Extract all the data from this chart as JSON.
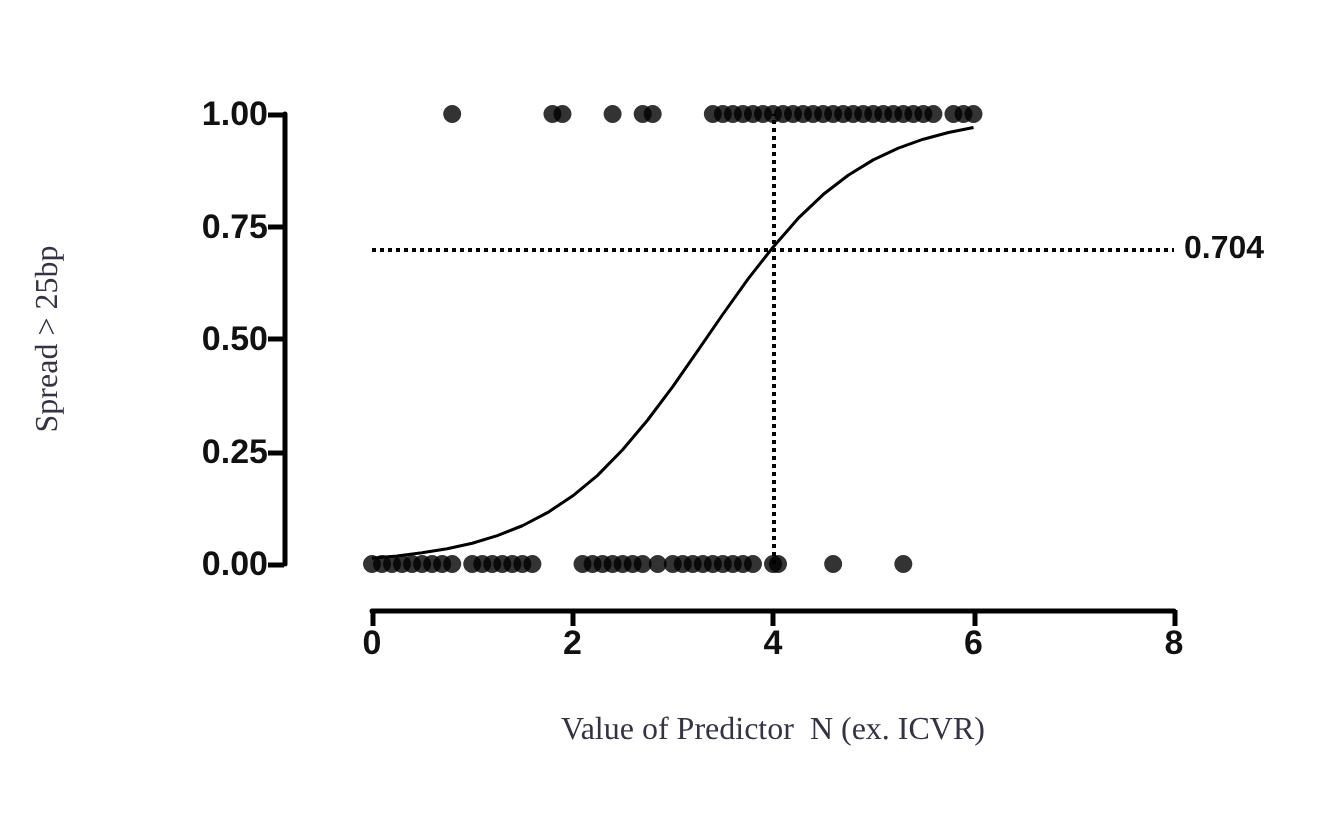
{
  "chart_data": {
    "type": "scatter",
    "xlabel": "Value of Predictor  N (ex. ICVR)",
    "ylabel": "Spread > 25bp",
    "xlim": [
      0,
      8
    ],
    "xticks": [
      0,
      2,
      4,
      6,
      8
    ],
    "ylim": [
      0,
      1
    ],
    "yticks": [
      {
        "value": 0,
        "label": "0.00"
      },
      {
        "value": 0.25,
        "label": "0.25"
      },
      {
        "value": 0.5,
        "label": "0.50"
      },
      {
        "value": 0.75,
        "label": "0.75"
      },
      {
        "value": 1,
        "label": "1.00"
      }
    ],
    "grid": false,
    "series": [
      {
        "color": "#000000",
        "marker": "circle",
        "x": [
          0,
          0.1,
          0.2,
          0.3,
          0.4,
          0.5,
          0.6,
          0.7,
          0.8,
          1.0,
          1.1,
          1.2,
          1.3,
          1.4,
          1.5,
          1.6,
          2.1,
          2.2,
          2.3,
          2.4,
          2.5,
          2.6,
          2.7,
          2.85,
          3.0,
          3.1,
          3.2,
          3.3,
          3.4,
          3.5,
          3.6,
          3.7,
          3.8,
          4.0,
          4.05,
          4.6,
          5.3,
          0.8,
          1.8,
          1.9,
          2.4,
          2.7,
          2.8,
          3.4,
          3.5,
          3.6,
          3.7,
          3.8,
          3.9,
          4.0,
          4.1,
          4.2,
          4.3,
          4.4,
          4.5,
          4.6,
          4.7,
          4.8,
          4.9,
          5.0,
          5.1,
          5.2,
          5.3,
          5.4,
          5.5,
          5.6,
          5.8,
          5.9,
          6.0
        ],
        "values": [
          0,
          0,
          0,
          0,
          0,
          0,
          0,
          0,
          0,
          0,
          0,
          0,
          0,
          0,
          0,
          0,
          0,
          0,
          0,
          0,
          0,
          0,
          0,
          0,
          0,
          0,
          0,
          0,
          0,
          0,
          0,
          0,
          0,
          0,
          0,
          0,
          0,
          1,
          1,
          1,
          1,
          1,
          1,
          1,
          1,
          1,
          1,
          1,
          1,
          1,
          1,
          1,
          1,
          1,
          1,
          1,
          1,
          1,
          1,
          1,
          1,
          1,
          1,
          1,
          1,
          1,
          1,
          1,
          1
        ]
      },
      {
        "type": "line",
        "color": "#000000",
        "marker": "none",
        "line_style": "solid",
        "x": [
          0,
          0.25,
          0.5,
          0.75,
          1,
          1.25,
          1.5,
          1.75,
          2,
          2.25,
          2.5,
          2.75,
          3,
          3.25,
          3.5,
          3.75,
          4,
          4.25,
          4.5,
          4.75,
          5,
          5.25,
          5.5,
          5.75,
          6
        ],
        "values": [
          0.013,
          0.018,
          0.025,
          0.034,
          0.046,
          0.063,
          0.085,
          0.114,
          0.151,
          0.197,
          0.254,
          0.32,
          0.394,
          0.474,
          0.555,
          0.633,
          0.704,
          0.768,
          0.821,
          0.864,
          0.898,
          0.924,
          0.944,
          0.959,
          0.97
        ]
      }
    ],
    "ref_lines": [
      {
        "axis": "y",
        "value": 0.704,
        "label": "0.704",
        "line_style": "dotted",
        "color": "#000000"
      },
      {
        "axis": "x",
        "value": 4,
        "label": null,
        "line_style": "dotted",
        "color": "#000000"
      }
    ]
  }
}
